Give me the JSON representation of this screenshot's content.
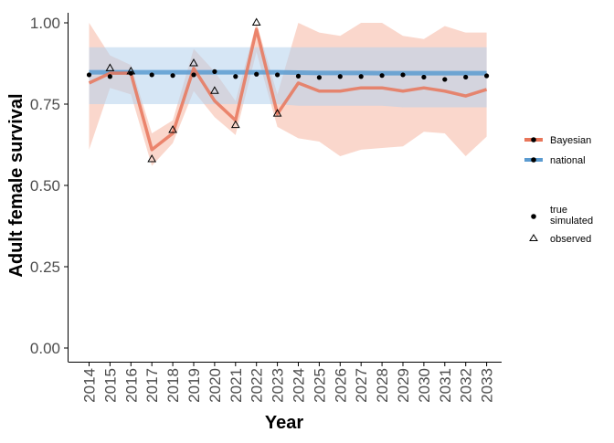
{
  "chart_data": {
    "type": "line",
    "xlabel": "Year",
    "ylabel": "Adult female survival",
    "ylim": [
      0,
      1.05
    ],
    "x": [
      "2014",
      "2015",
      "2016",
      "2017",
      "2018",
      "2019",
      "2020",
      "2021",
      "2022",
      "2023",
      "2024",
      "2025",
      "2026",
      "2027",
      "2028",
      "2029",
      "2030",
      "2031",
      "2032",
      "2033"
    ],
    "y_ticks": [
      "0.00",
      "0.25",
      "0.50",
      "0.75",
      "1.00"
    ],
    "y_tick_values": [
      0,
      0.25,
      0.5,
      0.75,
      1.0
    ],
    "grid": false,
    "legend_placement": "right",
    "series": [
      {
        "name": "Bayesian",
        "color": "#E8765A",
        "band_color": "#F6B7A3",
        "mean": [
          0.815,
          0.845,
          0.845,
          0.61,
          0.66,
          0.86,
          0.76,
          0.7,
          0.98,
          0.72,
          0.815,
          0.79,
          0.79,
          0.8,
          0.8,
          0.79,
          0.8,
          0.79,
          0.775,
          0.795
        ],
        "lower": [
          0.61,
          0.8,
          0.78,
          0.56,
          0.63,
          0.79,
          0.71,
          0.655,
          0.91,
          0.68,
          0.645,
          0.635,
          0.59,
          0.61,
          0.615,
          0.62,
          0.665,
          0.66,
          0.59,
          0.65
        ],
        "upper": [
          1.0,
          0.9,
          0.87,
          0.66,
          0.7,
          0.92,
          0.85,
          0.76,
          1.0,
          0.78,
          1.0,
          0.97,
          0.96,
          1.0,
          1.0,
          0.96,
          0.95,
          0.99,
          0.97,
          0.97
        ]
      },
      {
        "name": "national",
        "color": "#5B9BD0",
        "band_color": "#B5D2EC",
        "mean": [
          0.848,
          0.848,
          0.848,
          0.848,
          0.848,
          0.848,
          0.848,
          0.848,
          0.848,
          0.848,
          0.847,
          0.846,
          0.846,
          0.846,
          0.845,
          0.845,
          0.845,
          0.845,
          0.845,
          0.845
        ],
        "lower": [
          0.75,
          0.75,
          0.75,
          0.75,
          0.75,
          0.75,
          0.75,
          0.75,
          0.75,
          0.75,
          0.745,
          0.745,
          0.745,
          0.745,
          0.745,
          0.74,
          0.74,
          0.74,
          0.74,
          0.74
        ],
        "upper": [
          0.925,
          0.925,
          0.925,
          0.925,
          0.925,
          0.925,
          0.925,
          0.925,
          0.925,
          0.925,
          0.925,
          0.925,
          0.925,
          0.925,
          0.925,
          0.925,
          0.925,
          0.925,
          0.925,
          0.925
        ]
      }
    ],
    "points": {
      "simulated": [
        0.84,
        0.835,
        0.845,
        0.84,
        0.838,
        0.84,
        0.85,
        0.835,
        0.842,
        0.84,
        0.836,
        0.832,
        0.835,
        0.835,
        0.838,
        0.84,
        0.833,
        0.826,
        0.833,
        0.837
      ],
      "observed_years": [
        "2015",
        "2016",
        "2017",
        "2018",
        "2019",
        "2020",
        "2021",
        "2022",
        "2023"
      ],
      "observed": [
        0.86,
        0.85,
        0.58,
        0.67,
        0.875,
        0.79,
        0.685,
        1.0,
        0.72
      ]
    },
    "legend_lines": [
      "Bayesian",
      "national"
    ],
    "legend_points": [
      "true\nsimulated",
      "observed"
    ]
  }
}
